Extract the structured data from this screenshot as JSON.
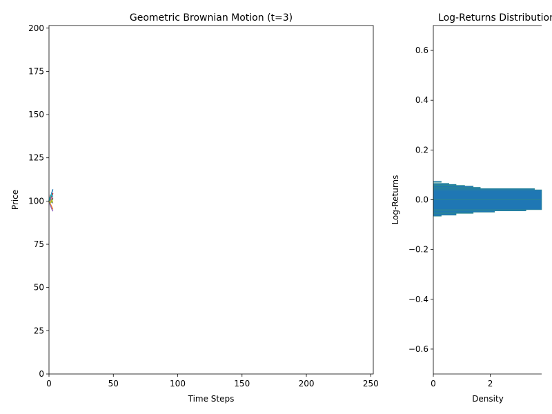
{
  "chart_data": [
    {
      "type": "line",
      "title": "Geometric Brownian Motion (t=3)",
      "xlabel": "Time Steps",
      "ylabel": "Price",
      "xlim": [
        0,
        252
      ],
      "ylim": [
        0,
        201.5
      ],
      "xticks": [
        "0",
        "50",
        "100",
        "150",
        "200",
        "250"
      ],
      "yticks": [
        "0",
        "25",
        "50",
        "75",
        "100",
        "125",
        "150",
        "175",
        "200"
      ],
      "x": [
        0,
        1,
        2,
        3
      ],
      "grid": false,
      "series": [
        {
          "color": "#1f77b4",
          "values": [
            100,
            102.1,
            104.3,
            106.8
          ]
        },
        {
          "color": "#ff7f0e",
          "values": [
            100,
            98.4,
            96.9,
            95.2
          ]
        },
        {
          "color": "#2ca02c",
          "values": [
            100,
            101.2,
            99.6,
            101.9
          ]
        },
        {
          "color": "#d62728",
          "values": [
            100,
            103.0,
            101.4,
            104.6
          ]
        },
        {
          "color": "#9467bd",
          "values": [
            100,
            97.6,
            95.8,
            94.1
          ]
        },
        {
          "color": "#8c564b",
          "values": [
            100,
            100.8,
            102.7,
            100.9
          ]
        },
        {
          "color": "#e377c2",
          "values": [
            100,
            99.1,
            101.5,
            103.2
          ]
        },
        {
          "color": "#7f7f7f",
          "values": [
            100,
            101.7,
            100.2,
            98.7
          ]
        },
        {
          "color": "#bcbd22",
          "values": [
            100,
            98.9,
            100.4,
            99.3
          ]
        },
        {
          "color": "#17becf",
          "values": [
            100,
            102.6,
            103.9,
            102.4
          ]
        }
      ]
    },
    {
      "type": "bar",
      "orientation": "horizontal",
      "title": "Log-Returns Distribution",
      "xlabel": "Density",
      "ylabel": "Log-Returns",
      "xlim": [
        0,
        3.8
      ],
      "ylim": [
        -0.7,
        0.7
      ],
      "xticks": [
        "0",
        "2"
      ],
      "yticks": [
        "0.6",
        "0.4",
        "0.2",
        "0.0",
        "−0.2",
        "−0.4",
        "−0.6"
      ],
      "bar_color": "#1f77b4",
      "edge_color": "#2e8b8b",
      "bins": [
        {
          "y0": 0.07,
          "y1": 0.074,
          "value": 0.28
        },
        {
          "y0": 0.062,
          "y1": 0.066,
          "value": 0.55
        },
        {
          "y0": 0.058,
          "y1": 0.062,
          "value": 0.8
        },
        {
          "y0": 0.055,
          "y1": 0.058,
          "value": 1.1
        },
        {
          "y0": 0.05,
          "y1": 0.055,
          "value": 1.4
        },
        {
          "y0": 0.045,
          "y1": 0.05,
          "value": 1.65
        },
        {
          "y0": 0.04,
          "y1": 0.045,
          "value": 3.55
        },
        {
          "y0": 0.0,
          "y1": 0.04,
          "value": 3.8
        },
        {
          "y0": -0.04,
          "y1": 0.0,
          "value": 3.8
        },
        {
          "y0": -0.045,
          "y1": -0.04,
          "value": 3.25
        },
        {
          "y0": -0.05,
          "y1": -0.045,
          "value": 2.15
        },
        {
          "y0": -0.055,
          "y1": -0.05,
          "value": 1.4
        },
        {
          "y0": -0.062,
          "y1": -0.055,
          "value": 0.8
        },
        {
          "y0": -0.066,
          "y1": -0.062,
          "value": 0.28
        }
      ]
    }
  ]
}
